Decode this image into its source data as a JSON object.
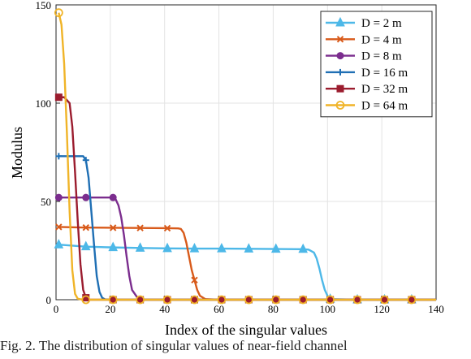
{
  "chart_data": {
    "type": "line",
    "title": "",
    "xlabel": "Index of the singular values",
    "ylabel": "Modulus",
    "xlim": [
      0,
      140
    ],
    "ylim": [
      0,
      150
    ],
    "xticks": [
      0,
      20,
      40,
      60,
      80,
      100,
      120,
      140
    ],
    "yticks": [
      0,
      50,
      100,
      150
    ],
    "grid": true,
    "legend_position": "top-right",
    "series": [
      {
        "name": "D = 2 m",
        "color": "#4db8e8",
        "marker": "triangle",
        "x": [
          1,
          11,
          21,
          31,
          41,
          51,
          61,
          71,
          81,
          91,
          93,
          95,
          96,
          97,
          98,
          99,
          100,
          101,
          111,
          121,
          131,
          140
        ],
        "y": [
          28,
          27,
          26.6,
          26.3,
          26.1,
          26,
          26,
          25.9,
          25.8,
          25.7,
          25.5,
          24,
          21,
          16,
          10,
          5,
          2,
          0.3,
          0,
          0,
          0,
          0
        ]
      },
      {
        "name": "D = 4 m",
        "color": "#d85a1a",
        "marker": "x",
        "x": [
          1,
          11,
          21,
          31,
          41,
          45,
          46,
          47,
          48,
          49,
          50,
          51,
          52,
          53,
          55,
          60,
          80,
          100,
          120,
          140
        ],
        "y": [
          37,
          36.7,
          36.6,
          36.5,
          36.4,
          36.3,
          36,
          34,
          29,
          22,
          15,
          10,
          5,
          2,
          0.3,
          0,
          0,
          0,
          0,
          0
        ]
      },
      {
        "name": "D = 8 m",
        "color": "#7b2d8e",
        "marker": "circle",
        "x": [
          1,
          11,
          21,
          22,
          23,
          24,
          25,
          26,
          27,
          28,
          30,
          31,
          50,
          80,
          100,
          120,
          140
        ],
        "y": [
          52,
          52,
          52,
          51,
          48,
          42,
          33,
          22,
          12,
          5,
          1,
          0,
          0,
          0,
          0,
          0,
          0
        ]
      },
      {
        "name": "D = 16 m",
        "color": "#1f6fb4",
        "marker": "plus",
        "x": [
          1,
          10,
          11,
          12,
          13,
          14,
          15,
          16,
          17,
          18,
          20,
          40,
          60,
          80,
          100,
          120,
          140
        ],
        "y": [
          73,
          73,
          71,
          62,
          45,
          28,
          12,
          4,
          1,
          0.2,
          0,
          0,
          0,
          0,
          0,
          0,
          0
        ]
      },
      {
        "name": "D = 32 m",
        "color": "#9b1c2e",
        "marker": "square",
        "x": [
          1,
          3,
          5,
          6,
          7,
          8,
          9,
          10,
          11,
          12,
          20,
          40,
          60,
          80,
          100,
          120,
          140
        ],
        "y": [
          103,
          103,
          100,
          88,
          65,
          40,
          18,
          5,
          1,
          0,
          0,
          0,
          0,
          0,
          0,
          0,
          0
        ]
      },
      {
        "name": "D = 64 m",
        "color": "#f0b428",
        "marker": "circle-open",
        "x": [
          1,
          2,
          3,
          4,
          5,
          6,
          7,
          8,
          10,
          20,
          30,
          40,
          50,
          60,
          70,
          80,
          90,
          100,
          110,
          120,
          130,
          140
        ],
        "y": [
          146,
          140,
          120,
          85,
          45,
          15,
          3,
          0.5,
          0,
          0,
          0,
          0,
          0,
          0,
          0,
          0,
          0,
          0,
          0,
          0,
          0,
          0
        ]
      }
    ]
  },
  "caption": "Fig. 2.   The distribution of singular values of near-field channel"
}
